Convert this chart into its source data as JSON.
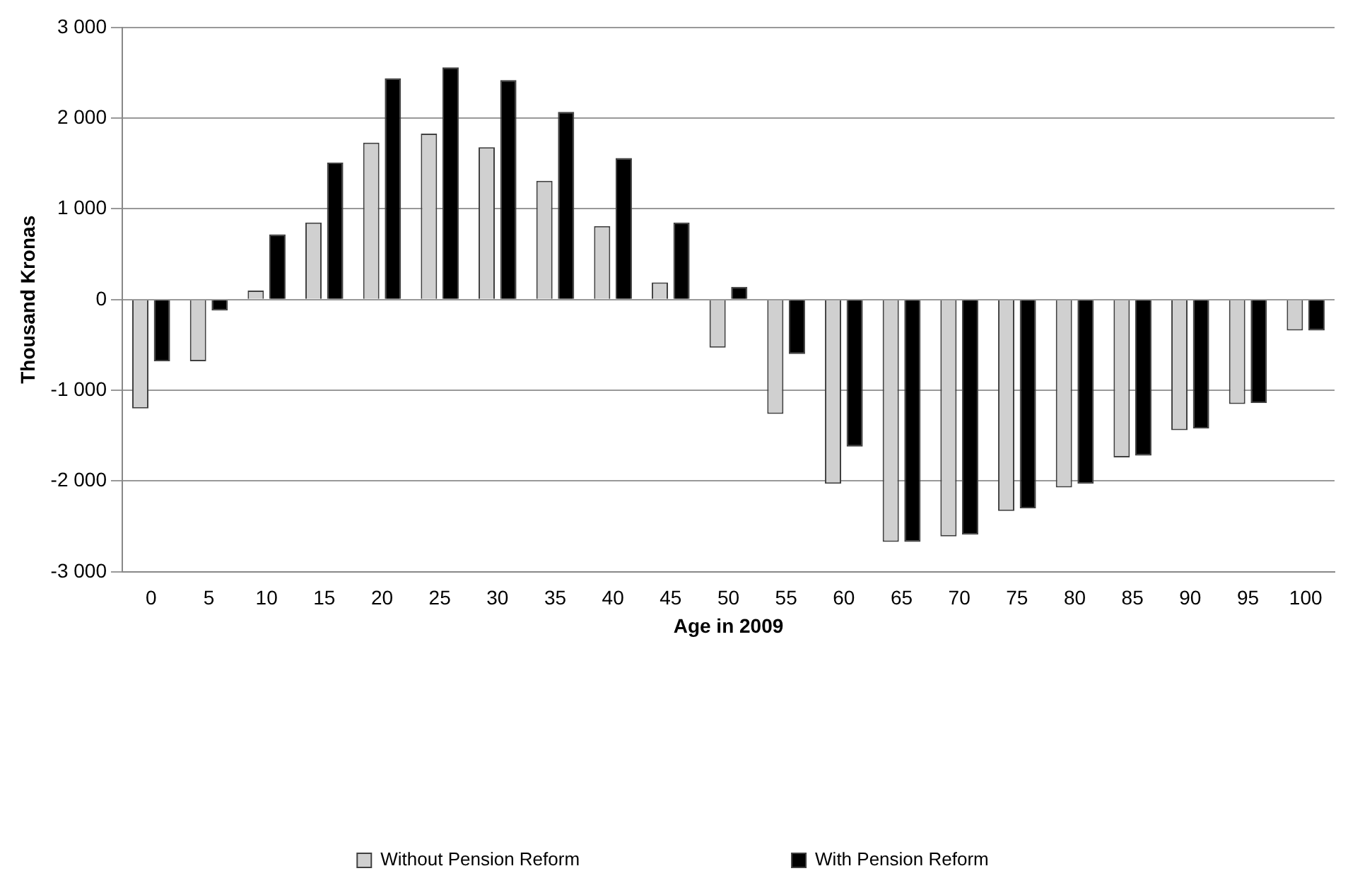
{
  "chart_data": {
    "type": "bar",
    "xlabel": "Age in 2009",
    "ylabel": "Thousand Kronas",
    "categories": [
      "0",
      "5",
      "10",
      "15",
      "20",
      "25",
      "30",
      "35",
      "40",
      "45",
      "50",
      "55",
      "60",
      "65",
      "70",
      "75",
      "80",
      "85",
      "90",
      "95",
      "100"
    ],
    "series": [
      {
        "name": "Without Pension Reform",
        "color": "#d0d0d0",
        "values": [
          -1200,
          -680,
          100,
          850,
          1730,
          1830,
          1680,
          1310,
          810,
          190,
          -530,
          -1260,
          -2030,
          -2670,
          -2610,
          -2330,
          -2070,
          -1740,
          -1440,
          -1150,
          -340
        ]
      },
      {
        "name": "With Pension Reform",
        "color": "#000000",
        "values": [
          -680,
          -120,
          720,
          1510,
          2440,
          2560,
          2420,
          2070,
          1560,
          850,
          140,
          -600,
          -1620,
          -2670,
          -2590,
          -2300,
          -2030,
          -1720,
          -1420,
          -1140,
          -340
        ]
      }
    ],
    "ylim": [
      -3000,
      3000
    ],
    "yticks": [
      {
        "value": -3000,
        "label": "-3 000"
      },
      {
        "value": -2000,
        "label": "-2 000"
      },
      {
        "value": -1000,
        "label": "-1 000"
      },
      {
        "value": 0,
        "label": "0"
      },
      {
        "value": 1000,
        "label": "1 000"
      },
      {
        "value": 2000,
        "label": "2 000"
      },
      {
        "value": 3000,
        "label": "3 000"
      }
    ],
    "grid": "y",
    "legend": "bottom"
  }
}
